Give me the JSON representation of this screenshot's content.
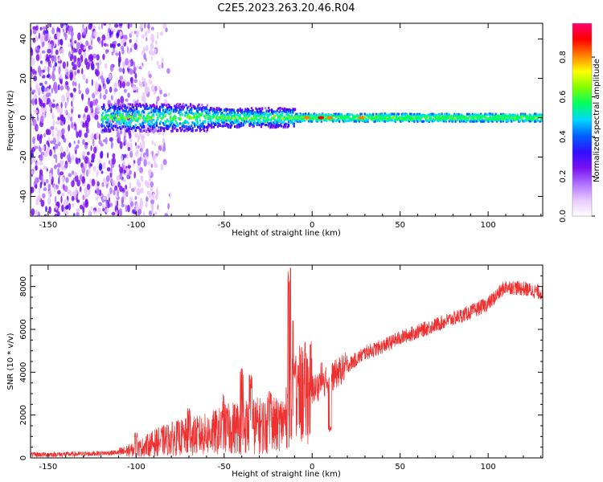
{
  "figure_title": "C2E5.2023.263.20.46.R04",
  "chart_data": [
    {
      "type": "heatmap",
      "title": "C2E5.2023.263.20.46.R04",
      "xlabel": "Height of straight line (km)",
      "ylabel": "Frequency (Hz)",
      "xlim": [
        -160,
        131
      ],
      "ylim": [
        -50,
        48
      ],
      "x_ticks": [
        -150,
        -100,
        -50,
        0,
        50,
        100
      ],
      "y_ticks": [
        -40,
        -20,
        0,
        20,
        40
      ],
      "colorbar": {
        "label": "Normalized spectral amplitude",
        "range": [
          0,
          0.97
        ],
        "ticks": [
          0.0,
          0.2,
          0.4,
          0.6,
          0.8
        ],
        "colormap": [
          "#ffffff",
          "#e8c8ff",
          "#b070ff",
          "#7a10f0",
          "#3010ff",
          "#0060ff",
          "#00d8ff",
          "#00ff60",
          "#80ff00",
          "#ffff00",
          "#ff8000",
          "#ff0000",
          "#ff0070"
        ]
      },
      "description_points": {
        "noise_region_x": [
          -160,
          -90
        ],
        "band_start_x": -120,
        "band_narrow_x": -10,
        "band_center_freq": 0,
        "band_halfwidth_wide": 5,
        "band_halfwidth_narrow": 2
      }
    },
    {
      "type": "line",
      "xlabel": "Height of straight line (km)",
      "ylabel": "SNR (10 * v/v)",
      "xlim": [
        -160,
        131
      ],
      "ylim": [
        0,
        9000
      ],
      "x_ticks": [
        -150,
        -100,
        -50,
        0,
        50,
        100
      ],
      "y_ticks": [
        0,
        2000,
        4000,
        6000,
        8000
      ],
      "series": [
        {
          "color": "#ee3030",
          "trend_x": [
            -160,
            -130,
            -110,
            -100,
            -90,
            -80,
            -70,
            -60,
            -50,
            -40,
            -30,
            -20,
            -15,
            -12,
            -10,
            -5,
            0,
            5,
            10,
            20,
            30,
            40,
            50,
            60,
            70,
            80,
            90,
            100,
            105,
            110,
            120,
            131
          ],
          "trend_y": [
            150,
            180,
            250,
            400,
            700,
            900,
            1000,
            1100,
            1300,
            1500,
            1500,
            1500,
            1800,
            2500,
            2800,
            3000,
            3200,
            3400,
            3700,
            4300,
            4900,
            5200,
            5600,
            5900,
            6200,
            6500,
            6800,
            7200,
            7600,
            8000,
            7900,
            7700
          ],
          "spikes": [
            {
              "x": -100,
              "y": 1200
            },
            {
              "x": -70,
              "y": 2400
            },
            {
              "x": -50,
              "y": 3000
            },
            {
              "x": -40,
              "y": 4300
            },
            {
              "x": -35,
              "y": 3900
            },
            {
              "x": -24,
              "y": 3200
            },
            {
              "x": -13,
              "y": 9000
            },
            {
              "x": -11,
              "y": 6500
            },
            {
              "x": -10,
              "y": 4600
            },
            {
              "x": 5,
              "y": 4700
            },
            {
              "x": 10,
              "y": 1500
            }
          ]
        }
      ]
    }
  ]
}
